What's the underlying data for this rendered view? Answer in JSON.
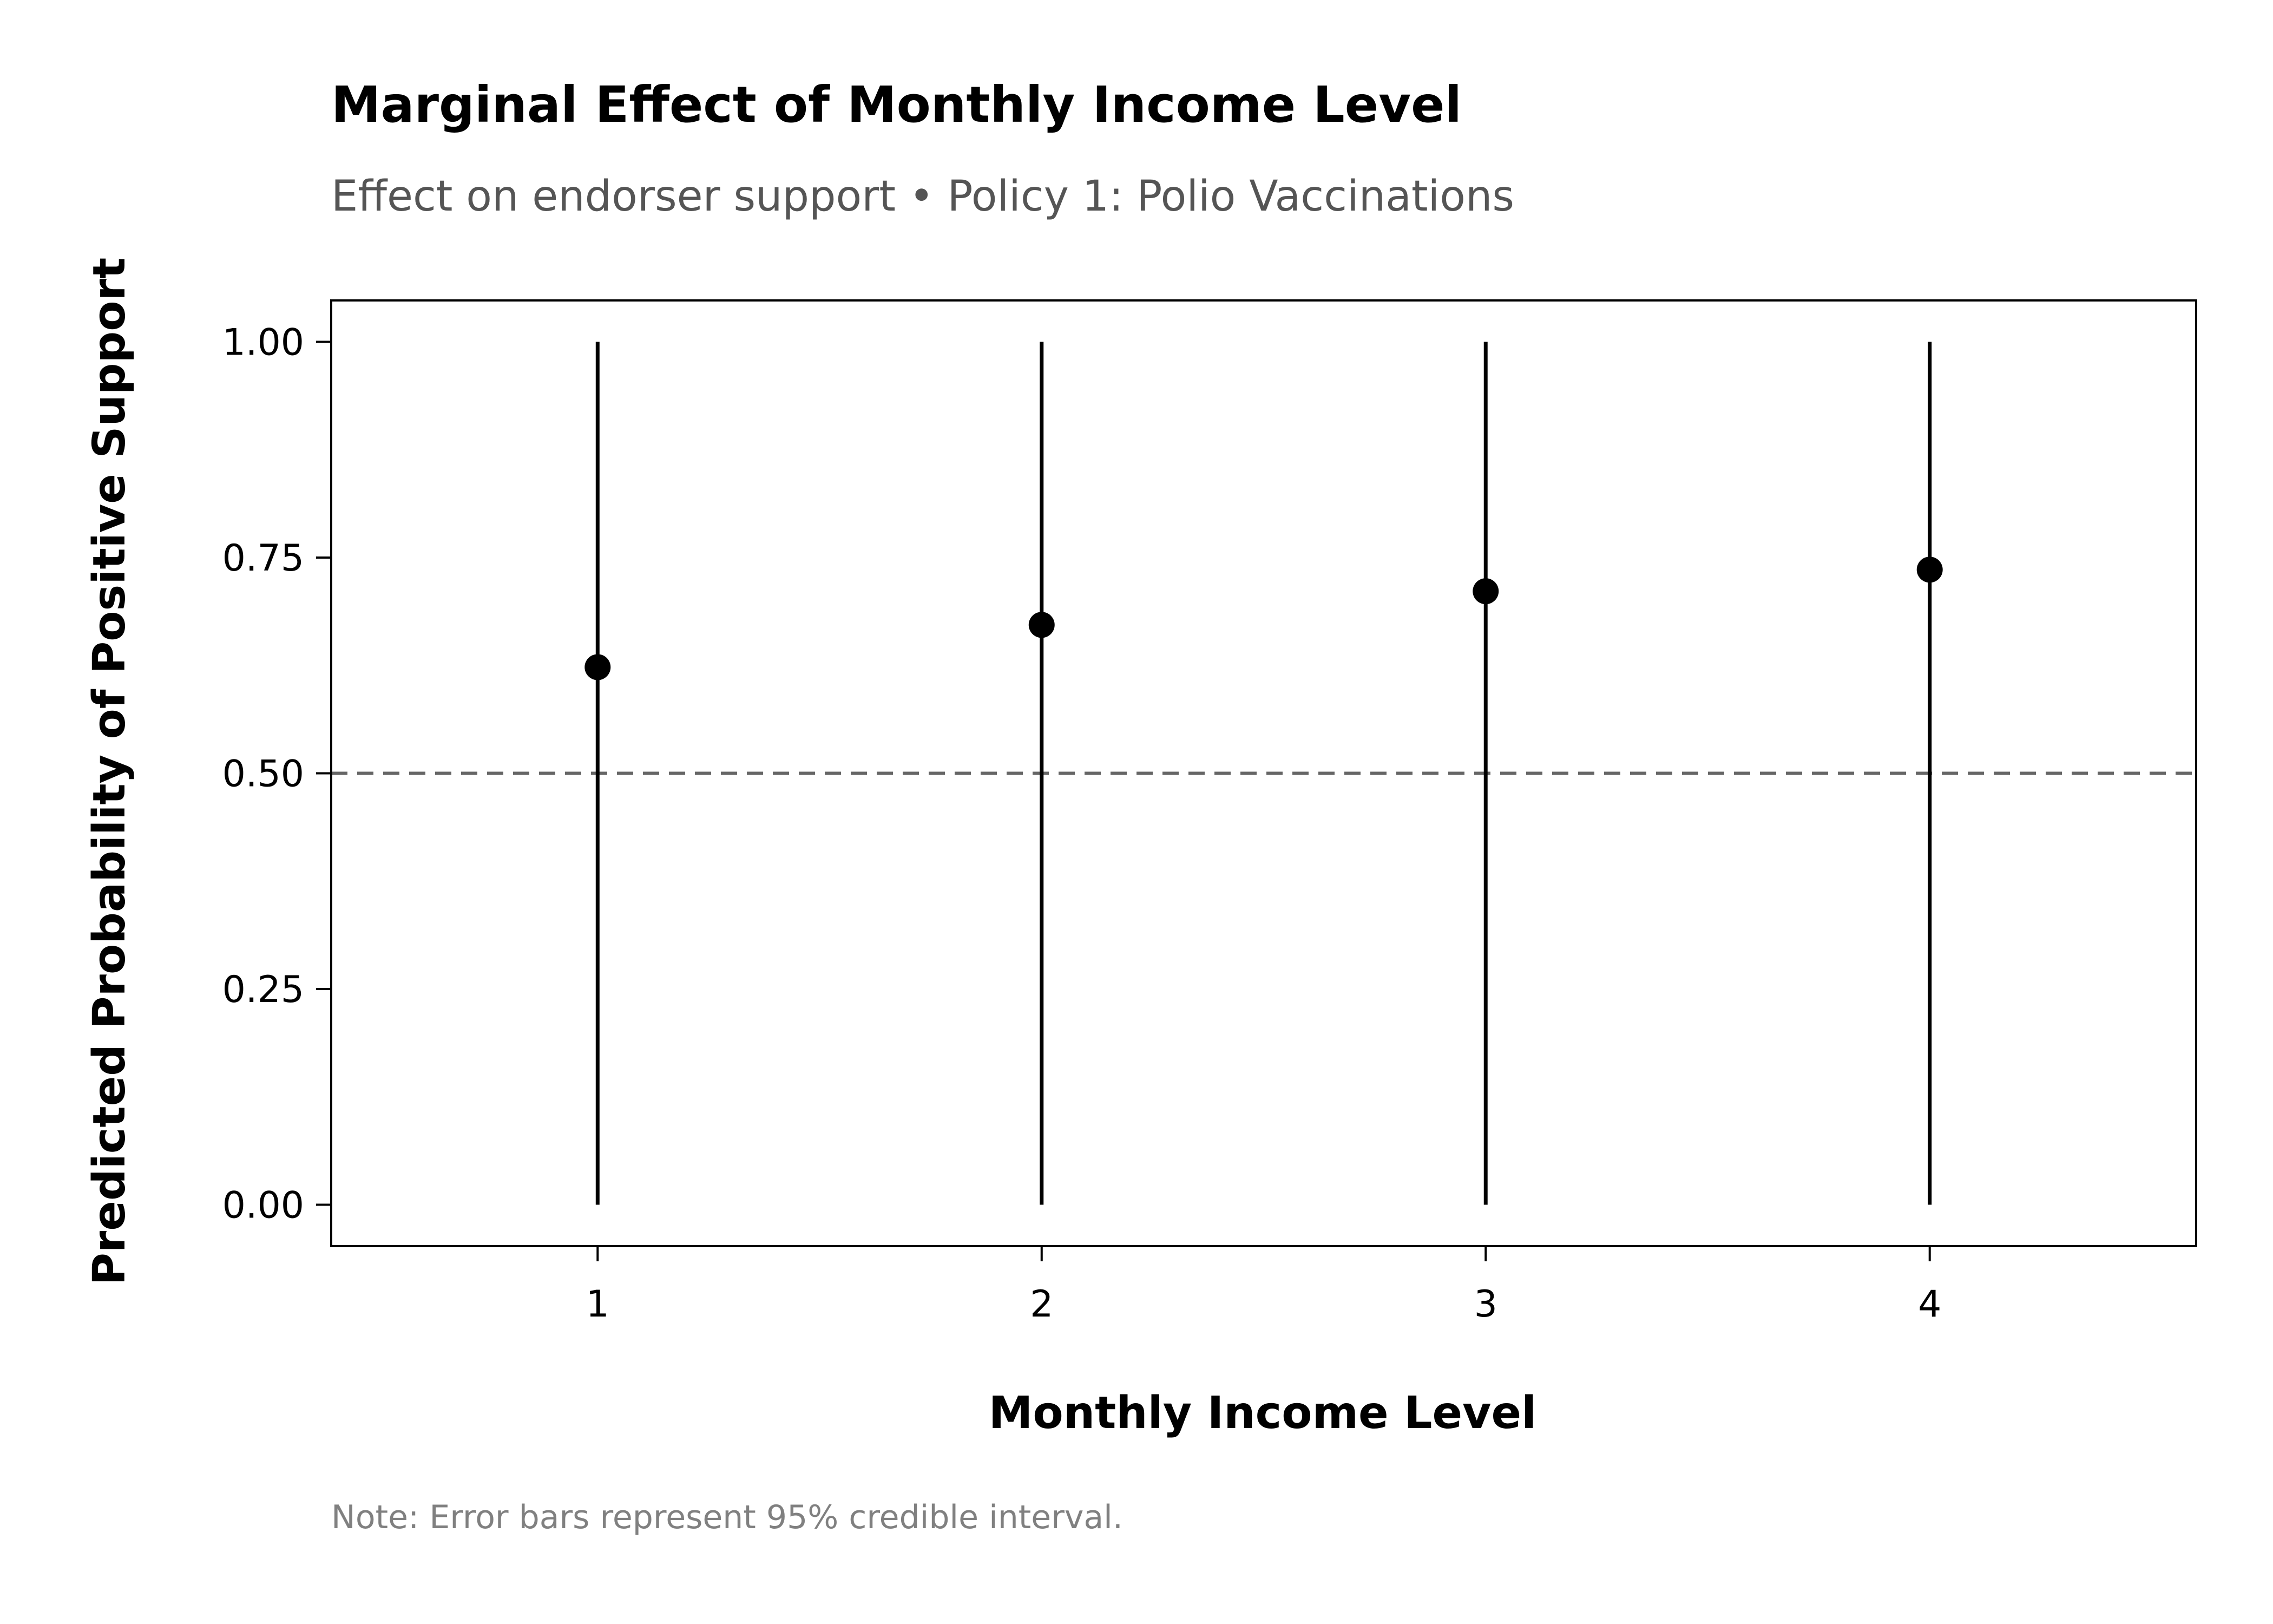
{
  "chart_data": {
    "type": "scatter",
    "title": "Marginal Effect of Monthly Income Level",
    "subtitle": "Effect on endorser support • Policy 1: Polio Vaccinations",
    "xlabel": "Monthly Income Level",
    "ylabel": "Predicted Probability of Positive Support",
    "note": "Note: Error bars represent 95% credible interval.",
    "x": [
      1,
      2,
      3,
      4
    ],
    "x_tick_labels": [
      "1",
      "2",
      "3",
      "4"
    ],
    "y": [
      0.623,
      0.672,
      0.711,
      0.736
    ],
    "ci_lower": [
      0.0,
      0.0,
      0.0,
      0.0
    ],
    "ci_upper": [
      1.0,
      1.0,
      1.0,
      1.0
    ],
    "xlim": [
      0.4,
      4.6
    ],
    "ylim": [
      -0.048,
      1.048
    ],
    "y_ticks": [
      0.0,
      0.25,
      0.5,
      0.75,
      1.0
    ],
    "y_tick_labels": [
      "0.00",
      "0.25",
      "0.50",
      "0.75",
      "1.00"
    ],
    "reference_line": {
      "y": 0.5,
      "style": "dashed",
      "color": "#666666"
    },
    "grid": false,
    "legend": "none",
    "colors": {
      "points": "#000000",
      "error_bars": "#000000",
      "axes": "#000000"
    }
  }
}
